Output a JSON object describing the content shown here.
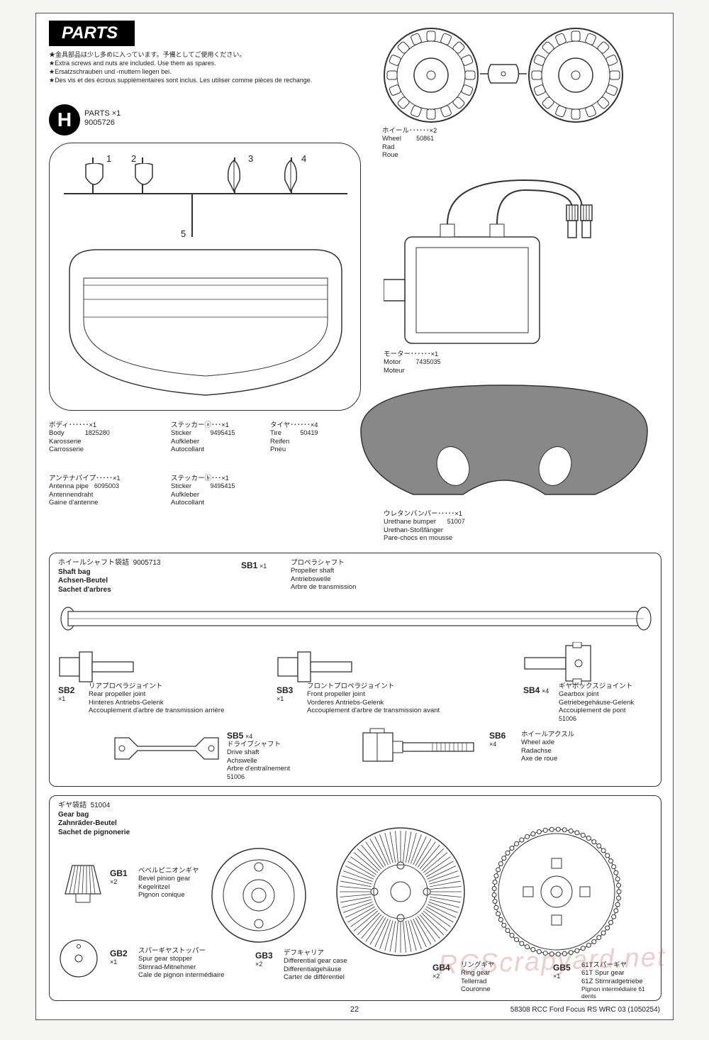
{
  "header": {
    "title": "PARTS",
    "notes_jp": "★金具部品は少し多めに入っています。予備としてご使用ください。",
    "notes_en": "★Extra screws and nuts are included. Use them as spares.",
    "notes_de": "★Ersatzschrauben und -muttern liegen bei.",
    "notes_fr": "★Des vis et des écrous supplémentaires sont inclus. Les utiliser comme pièces de rechange."
  },
  "h_parts": {
    "badge": "H",
    "label": "PARTS ×1",
    "partno": "9005726",
    "nums": {
      "n1": "1",
      "n2": "2",
      "n3": "3",
      "n4": "4",
      "n5": "5"
    }
  },
  "wheel": {
    "jp": "ホイール･･････×2",
    "en": "Wheel",
    "de": "Rad",
    "fr": "Roue",
    "partno": "50861"
  },
  "motor": {
    "jp": "モーター･･････×1",
    "en": "Motor",
    "fr": "Moteur",
    "partno": "7435035"
  },
  "body": {
    "jp": "ボディ･･････×1",
    "en": "Body",
    "de": "Karosserie",
    "fr": "Carrosserie",
    "partno": "1825280"
  },
  "sticker_a": {
    "jp": "ステッカーⓐ･･･×1",
    "en": "Sticker",
    "de": "Aufkleber",
    "fr": "Autocollant",
    "partno": "9495415"
  },
  "tire": {
    "jp": "タイヤ･･････×4",
    "en": "Tire",
    "de": "Reifen",
    "fr": "Pneu",
    "partno": "50419"
  },
  "antenna": {
    "jp": "アンテナパイプ･････×1",
    "en": "Antenna pipe",
    "de": "Antennendraht",
    "fr": "Gaine d'antenne",
    "partno": "6095003"
  },
  "sticker_b": {
    "jp": "ステッカーⓑ･･･×1",
    "en": "Sticker",
    "de": "Aufkleber",
    "fr": "Autocollant",
    "partno": "9495415"
  },
  "urethane": {
    "jp": "ウレタンバンパー･････×1",
    "en": "Urethane bumper",
    "de": "Urethan-Stoßfänger",
    "fr": "Pare-chocs en mousse",
    "partno": "51007"
  },
  "shaft_bag": {
    "title_jp": "ホイールシャフト袋詰",
    "title_en": "Shaft bag",
    "title_de": "Achsen-Beutel",
    "title_fr": "Sachet d'arbres",
    "partno": "9005713",
    "sb1": {
      "code": "SB1",
      "qty": "×1",
      "jp": "プロペラシャフト",
      "en": "Propeller shaft",
      "de": "Antriebswelle",
      "fr": "Arbre de transmission"
    },
    "sb2": {
      "code": "SB2",
      "qty": "×1",
      "jp": "リアプロペラジョイント",
      "en": "Rear propeller joint",
      "de": "Hinteres Antriebs-Gelenk",
      "fr": "Accouplement d'arbre de transmission arrière"
    },
    "sb3": {
      "code": "SB3",
      "qty": "×1",
      "jp": "フロントプロペラジョイント",
      "en": "Front propeller joint",
      "de": "Vorderes Antriebs-Gelenk",
      "fr": "Accouplement d'arbre de transmission avant"
    },
    "sb4": {
      "code": "SB4",
      "qty": "×4",
      "jp": "ギヤボックスジョイント",
      "en": "Gearbox joint",
      "de": "Getriebegehäuse-Gelenk",
      "fr": "Accouplement de pont",
      "partno": "51006"
    },
    "sb5": {
      "code": "SB5",
      "qty": "×4",
      "jp": "ドライブシャフト",
      "en": "Drive shaft",
      "de": "Achswelle",
      "fr": "Arbre d'entraînement",
      "partno": "51006"
    },
    "sb6": {
      "code": "SB6",
      "qty": "×4",
      "jp": "ホイールアクスル",
      "en": "Wheel axle",
      "de": "Radachse",
      "fr": "Axe de roue"
    }
  },
  "gear_bag": {
    "title_jp": "ギヤ袋詰",
    "title_en": "Gear bag",
    "title_de": "Zahnräder-Beutel",
    "title_fr": "Sachet de pignonerie",
    "partno": "51004",
    "gb1": {
      "code": "GB1",
      "qty": "×2",
      "jp": "ベベルピニオンギヤ",
      "en": "Bevel pinion gear",
      "de": "Kegelritzel",
      "fr": "Pignon conique"
    },
    "gb2": {
      "code": "GB2",
      "qty": "×1",
      "jp": "スパーギヤストッパー",
      "en": "Spur gear stopper",
      "de": "Stirnrad-Mitnehmer",
      "fr": "Cale de pignon intermédiaire"
    },
    "gb3": {
      "code": "GB3",
      "qty": "×2",
      "jp": "デフキャリア",
      "en": "Differential gear case",
      "de": "Differentialgehäuse",
      "fr": "Carter de différentiel"
    },
    "gb4": {
      "code": "GB4",
      "qty": "×2",
      "jp": "リングギヤ",
      "en": "Ring gear",
      "de": "Tellerrad",
      "fr": "Couronne"
    },
    "gb5": {
      "code": "GB5",
      "qty": "×1",
      "jp": "61Tスパーギヤ",
      "en": "61T Spur gear",
      "de": "61Z Stirnradgetriebe",
      "fr": "Pignon intermédiaire 61 dents"
    }
  },
  "footer": {
    "page": "22",
    "right": "58308 RCC Ford Focus RS WRC 03 (1050254)"
  },
  "watermark": "RCScrapyard.net"
}
